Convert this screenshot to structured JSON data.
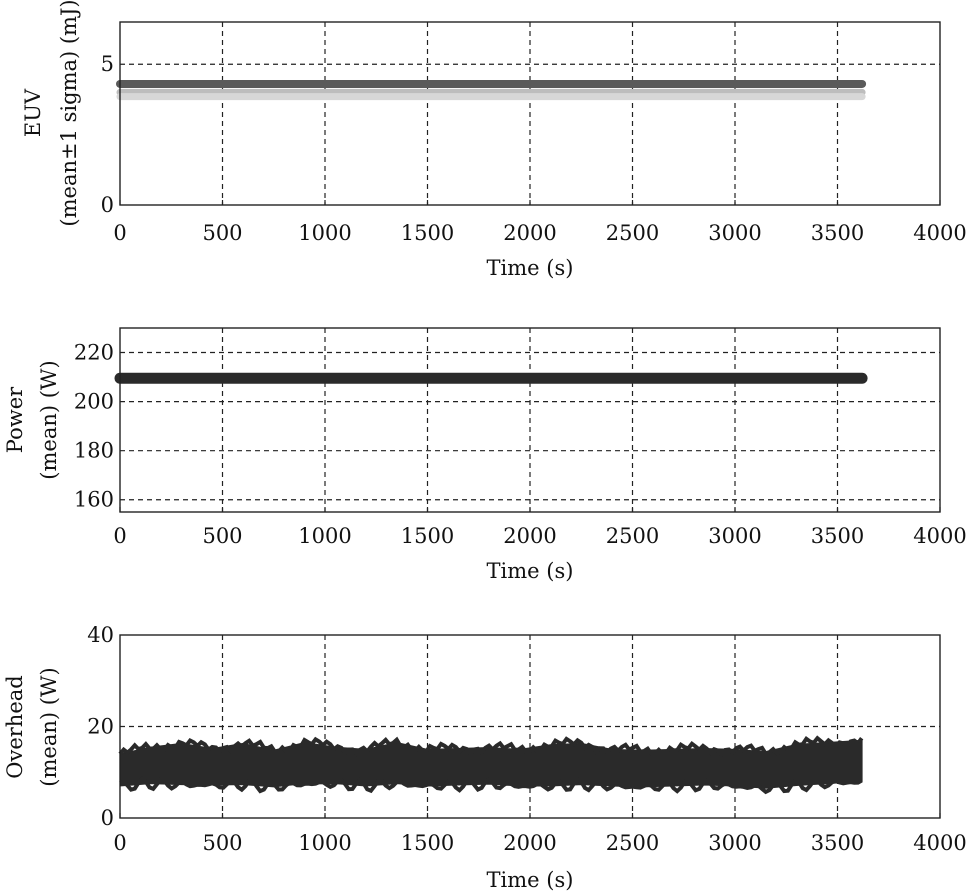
{
  "chart_data": [
    {
      "type": "line",
      "xlabel": "Time (s)",
      "ylabel": [
        "EUV",
        "(mean±1 sigma) (mJ)"
      ],
      "xlim": [
        0,
        4000
      ],
      "ylim": [
        0,
        6.5
      ],
      "x_ticks": [
        "0",
        "500",
        "1000",
        "1500",
        "2000",
        "2500",
        "3000",
        "3500",
        "4000"
      ],
      "y_ticks": [
        "0",
        "5"
      ],
      "grid": true,
      "series": [
        {
          "color": "#5a5a5a",
          "x": [
            0,
            3620
          ],
          "values": [
            4.3,
            4.3
          ]
        },
        {
          "color": "#bdbdbd",
          "x": [
            0,
            3620
          ],
          "values": [
            4.0,
            4.0
          ]
        },
        {
          "color": "#d7d7d7",
          "x": [
            0,
            3620
          ],
          "values": [
            3.85,
            3.85
          ]
        }
      ]
    },
    {
      "type": "line",
      "xlabel": "Time (s)",
      "ylabel": [
        "Power",
        "(mean) (W)"
      ],
      "xlim": [
        0,
        4000
      ],
      "ylim": [
        155,
        230
      ],
      "x_ticks": [
        "0",
        "500",
        "1000",
        "1500",
        "2000",
        "2500",
        "3000",
        "3500",
        "4000"
      ],
      "y_ticks": [
        "160",
        "180",
        "200",
        "220"
      ],
      "grid": true,
      "series": [
        {
          "color": "#2a2a2a",
          "x": [
            0,
            3620
          ],
          "values": [
            209.5,
            209.5
          ]
        }
      ]
    },
    {
      "type": "line",
      "xlabel": "Time (s)",
      "ylabel": [
        "Overhead",
        "(mean) (W)"
      ],
      "xlim": [
        0,
        4000
      ],
      "ylim": [
        0,
        40
      ],
      "x_ticks": [
        "0",
        "500",
        "1000",
        "1500",
        "2000",
        "2500",
        "3000",
        "3500",
        "4000"
      ],
      "y_ticks": [
        "0",
        "20",
        "40"
      ],
      "grid": true,
      "series": [
        {
          "color": "#2a2a2a",
          "x": [
            0,
            150,
            300,
            450,
            600,
            750,
            900,
            1050,
            1200,
            1350,
            1500,
            1650,
            1800,
            1950,
            2100,
            2250,
            2400,
            2550,
            2700,
            2850,
            3000,
            3150,
            3300,
            3450,
            3620
          ],
          "values": [
            10.5,
            11.5,
            11.8,
            11.2,
            11.8,
            10.8,
            12.0,
            11.5,
            11.0,
            12.0,
            11.0,
            11.2,
            11.4,
            11.0,
            11.5,
            11.8,
            11.0,
            10.8,
            11.0,
            11.2,
            11.0,
            10.5,
            11.6,
            12.0,
            12.5
          ],
          "band": [
            3.5,
            4.0,
            4.5,
            4.0,
            4.5,
            4.0,
            4.5,
            4.0,
            4.0,
            4.5,
            4.0,
            4.0,
            4.0,
            4.0,
            4.5,
            4.5,
            4.0,
            4.0,
            4.0,
            4.0,
            4.0,
            4.0,
            4.5,
            4.5,
            4.5
          ]
        }
      ]
    }
  ]
}
